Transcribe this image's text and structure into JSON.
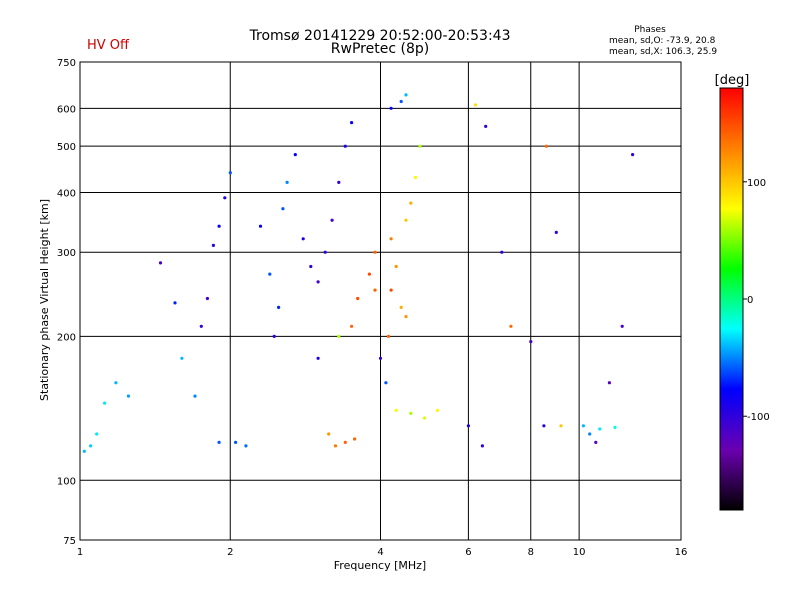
{
  "header": {
    "status": "HV Off",
    "status_color": "#cc0000",
    "title_line1": "Tromsø 20141229 20:52:00-20:53:43",
    "title_line2": "RwPretec (8p)",
    "stats_title": "Phases",
    "stats_line1": "mean, sd,O: -73.9, 20.8",
    "stats_line2": "mean, sd,X: 106.3, 25.9"
  },
  "chart_data": {
    "type": "scatter",
    "xlabel": "Frequency [MHz]",
    "ylabel": "Stationary phase Virtual Height [km]",
    "x_scale": "log",
    "y_scale": "log",
    "xlim": [
      1,
      16
    ],
    "ylim": [
      75,
      750
    ],
    "x_ticks": [
      1,
      2,
      4,
      6,
      8,
      10,
      16
    ],
    "x_tick_labels": [
      "1",
      "2",
      "4",
      "6",
      "8",
      "10",
      "16"
    ],
    "y_ticks": [
      75,
      100,
      200,
      300,
      400,
      500,
      600,
      750
    ],
    "y_tick_labels": [
      "75",
      "100",
      "200",
      "300",
      "400",
      "500",
      "600",
      "750"
    ],
    "grid": true,
    "colorbar": {
      "label": "[deg]",
      "range": [
        -180,
        180
      ],
      "ticks": [
        100,
        0,
        -100
      ],
      "tick_labels": [
        "100",
        "0",
        "-100"
      ],
      "colors": [
        "#000000",
        "#6a00b0",
        "#0000ff",
        "#00ffff",
        "#00ff00",
        "#ffff00",
        "#ff8000",
        "#ff0000"
      ]
    },
    "series": [
      {
        "points": [
          [
            1.02,
            115,
            -40
          ],
          [
            1.05,
            118,
            -35
          ],
          [
            1.08,
            125,
            -30
          ],
          [
            1.12,
            145,
            -30
          ],
          [
            1.18,
            160,
            -40
          ],
          [
            1.25,
            150,
            -45
          ],
          [
            1.45,
            285,
            -110
          ],
          [
            1.55,
            235,
            -70
          ],
          [
            1.6,
            180,
            -40
          ],
          [
            1.7,
            150,
            -50
          ],
          [
            1.75,
            210,
            -100
          ],
          [
            1.8,
            240,
            -110
          ],
          [
            1.85,
            310,
            -100
          ],
          [
            1.9,
            340,
            -80
          ],
          [
            1.95,
            390,
            -90
          ],
          [
            2.0,
            440,
            -60
          ],
          [
            1.9,
            120,
            -60
          ],
          [
            2.05,
            120,
            -60
          ],
          [
            2.15,
            118,
            -55
          ],
          [
            2.3,
            340,
            -80
          ],
          [
            2.4,
            270,
            -60
          ],
          [
            2.45,
            200,
            -100
          ],
          [
            2.5,
            230,
            -70
          ],
          [
            2.55,
            370,
            -60
          ],
          [
            2.6,
            420,
            -50
          ],
          [
            2.7,
            480,
            -80
          ],
          [
            2.8,
            320,
            -90
          ],
          [
            2.9,
            280,
            -100
          ],
          [
            3.0,
            260,
            -110
          ],
          [
            3.0,
            180,
            -90
          ],
          [
            3.1,
            300,
            -100
          ],
          [
            3.2,
            350,
            -110
          ],
          [
            3.3,
            420,
            -100
          ],
          [
            3.4,
            500,
            -90
          ],
          [
            3.5,
            560,
            -80
          ],
          [
            3.15,
            125,
            120
          ],
          [
            3.25,
            118,
            130
          ],
          [
            3.4,
            120,
            140
          ],
          [
            3.55,
            122,
            140
          ],
          [
            3.3,
            200,
            60
          ],
          [
            3.5,
            210,
            140
          ],
          [
            3.6,
            240,
            150
          ],
          [
            3.8,
            270,
            150
          ],
          [
            3.9,
            300,
            140
          ],
          [
            3.9,
            250,
            140
          ],
          [
            4.0,
            180,
            -100
          ],
          [
            4.1,
            160,
            -60
          ],
          [
            4.15,
            200,
            140
          ],
          [
            4.2,
            250,
            150
          ],
          [
            4.2,
            320,
            130
          ],
          [
            4.3,
            280,
            120
          ],
          [
            4.4,
            230,
            110
          ],
          [
            4.5,
            220,
            120
          ],
          [
            4.5,
            350,
            100
          ],
          [
            4.6,
            380,
            110
          ],
          [
            4.7,
            430,
            80
          ],
          [
            4.8,
            500,
            60
          ],
          [
            4.3,
            140,
            80
          ],
          [
            4.6,
            138,
            60
          ],
          [
            4.9,
            135,
            70
          ],
          [
            5.2,
            140,
            80
          ],
          [
            4.2,
            600,
            -80
          ],
          [
            4.4,
            620,
            -60
          ],
          [
            4.5,
            640,
            -40
          ],
          [
            6.2,
            610,
            90
          ],
          [
            6.5,
            550,
            -100
          ],
          [
            6.0,
            130,
            -90
          ],
          [
            6.4,
            118,
            -100
          ],
          [
            7.0,
            300,
            -100
          ],
          [
            7.3,
            210,
            140
          ],
          [
            8.0,
            195,
            -110
          ],
          [
            8.5,
            130,
            -100
          ],
          [
            8.6,
            500,
            140
          ],
          [
            9.0,
            330,
            -100
          ],
          [
            9.2,
            130,
            100
          ],
          [
            10.2,
            130,
            -40
          ],
          [
            10.5,
            125,
            -50
          ],
          [
            11.0,
            128,
            -30
          ],
          [
            11.8,
            129,
            -20
          ],
          [
            12.8,
            480,
            -100
          ],
          [
            12.2,
            210,
            -110
          ],
          [
            11.5,
            160,
            -120
          ],
          [
            10.8,
            120,
            -120
          ]
        ]
      }
    ]
  }
}
